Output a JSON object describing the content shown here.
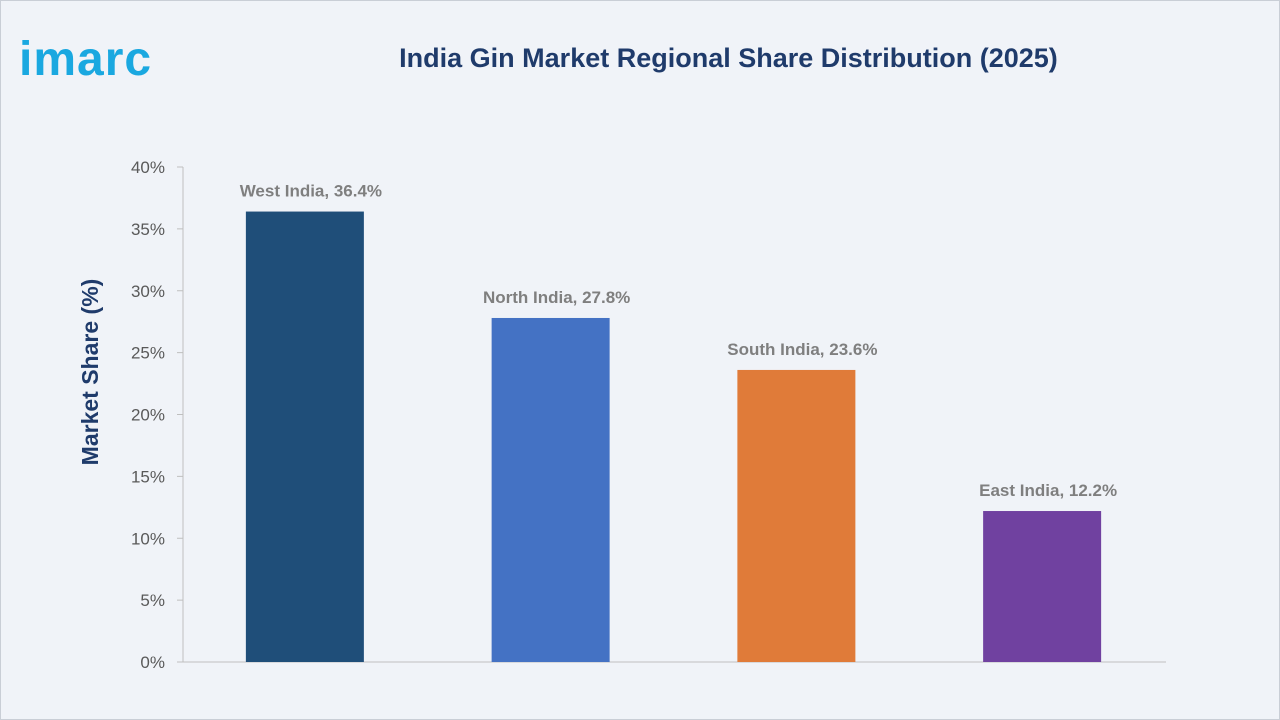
{
  "brand": {
    "logo_text": "imarc",
    "logo_color": "#1aa8e0"
  },
  "chart_data": {
    "type": "bar",
    "title": "India Gin Market Regional Share Distribution (2025)",
    "xlabel": "",
    "ylabel": "Market Share (%)",
    "ylim": [
      0,
      40
    ],
    "yticks": [
      0,
      5,
      10,
      15,
      20,
      25,
      30,
      35,
      40
    ],
    "ytick_labels": [
      "0%",
      "5%",
      "10%",
      "15%",
      "20%",
      "25%",
      "30%",
      "35%",
      "40%"
    ],
    "grid": false,
    "legend": "none",
    "categories": [
      "West India",
      "North India",
      "South India",
      "East India"
    ],
    "values": [
      36.4,
      27.8,
      23.6,
      12.2
    ],
    "data_labels": [
      "West India, 36.4%",
      "North India, 27.8%",
      "South India, 23.6%",
      "East India, 12.2%"
    ],
    "colors": [
      "#1f4e79",
      "#4472c4",
      "#e07b39",
      "#7041a0"
    ]
  }
}
